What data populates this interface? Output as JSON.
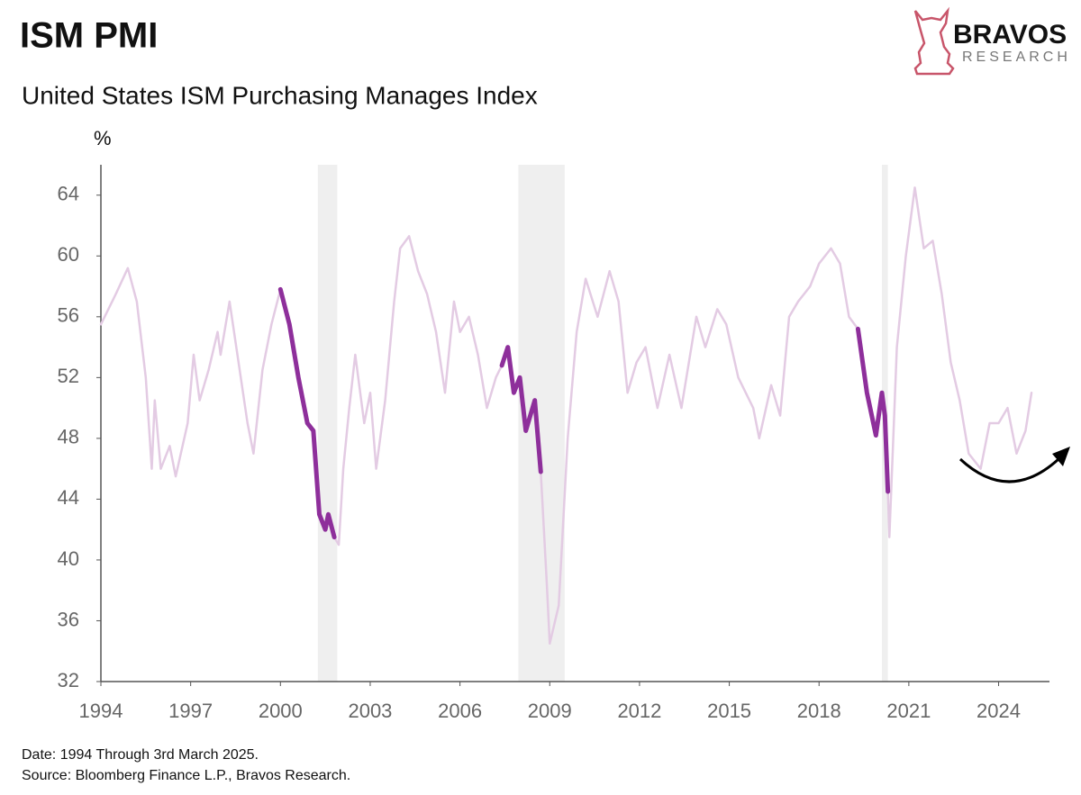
{
  "chart_data": {
    "type": "line",
    "title": "ISM PMI",
    "subtitle": "United States ISM Purchasing Manages Index",
    "y_unit": "%",
    "brand": "BRAVOS",
    "brand_sub": "RESEARCH",
    "notes": [
      "Date: 1994 Through 3rd March 2025.",
      "Source: Bloomberg Finance L.P., Bravos Research."
    ],
    "x": [
      1994.0,
      1994.5,
      1994.9,
      1995.2,
      1995.5,
      1995.7,
      1995.8,
      1996.0,
      1996.3,
      1996.5,
      1996.9,
      1997.1,
      1997.3,
      1997.6,
      1997.9,
      1998.0,
      1998.3,
      1998.6,
      1998.9,
      1999.1,
      1999.4,
      1999.7,
      2000.0,
      2000.3,
      2000.6,
      2000.9,
      2001.1,
      2001.3,
      2001.5,
      2001.6,
      2001.8,
      2001.95,
      2002.1,
      2002.3,
      2002.5,
      2002.8,
      2003.0,
      2003.2,
      2003.5,
      2003.8,
      2004.0,
      2004.3,
      2004.6,
      2004.9,
      2005.2,
      2005.5,
      2005.8,
      2006.0,
      2006.3,
      2006.6,
      2006.9,
      2007.2,
      2007.4,
      2007.6,
      2007.8,
      2008.0,
      2008.2,
      2008.5,
      2008.7,
      2008.9,
      2009.0,
      2009.3,
      2009.6,
      2009.9,
      2010.2,
      2010.6,
      2011.0,
      2011.3,
      2011.6,
      2011.9,
      2012.2,
      2012.6,
      2013.0,
      2013.4,
      2013.9,
      2014.2,
      2014.6,
      2014.9,
      2015.3,
      2015.8,
      2016.0,
      2016.4,
      2016.7,
      2017.0,
      2017.3,
      2017.7,
      2018.0,
      2018.4,
      2018.7,
      2019.0,
      2019.3,
      2019.6,
      2019.9,
      2020.1,
      2020.2,
      2020.3,
      2020.35,
      2020.6,
      2020.9,
      2021.2,
      2021.5,
      2021.8,
      2022.1,
      2022.4,
      2022.7,
      2023.0,
      2023.4,
      2023.7,
      2024.0,
      2024.3,
      2024.6,
      2024.9,
      2025.1
    ],
    "series": [
      {
        "color": "#e3cbe3",
        "width": 2.5,
        "values": [
          55.5,
          57.5,
          59.2,
          57,
          52,
          46,
          50.5,
          46,
          47.5,
          45.5,
          49,
          53.5,
          50.5,
          52.5,
          55,
          53.5,
          57,
          53,
          49,
          47,
          52.5,
          55.5,
          57.8,
          55.5,
          52,
          49,
          48.5,
          43,
          42,
          43,
          41.5,
          41,
          46,
          50,
          53.5,
          49,
          51,
          46,
          50.5,
          57,
          60.5,
          61.3,
          59,
          57.5,
          55,
          51,
          57,
          55,
          56,
          53.5,
          50,
          52,
          52.8,
          54,
          51,
          52,
          48.5,
          50.5,
          45.8,
          38.5,
          34.5,
          37,
          48,
          55,
          58.5,
          56,
          59,
          57,
          51,
          53,
          54,
          50,
          53.5,
          50,
          56,
          54,
          56.5,
          55.5,
          52,
          50,
          48,
          51.5,
          49.5,
          56,
          57,
          58,
          59.5,
          60.5,
          59.5,
          56,
          55.2,
          51,
          48.2,
          51,
          49.5,
          44.5,
          41.5,
          54,
          60,
          64.5,
          60.5,
          61,
          57.5,
          53,
          50.5,
          47,
          46,
          49,
          49,
          50,
          47,
          48.5,
          51
        ]
      },
      {
        "color": "#8e2f9b",
        "width": 5,
        "values": [
          null,
          null,
          null,
          null,
          null,
          null,
          null,
          null,
          null,
          null,
          null,
          null,
          null,
          null,
          null,
          null,
          null,
          null,
          null,
          null,
          null,
          null,
          57.8,
          55.5,
          52,
          49,
          48.5,
          43,
          42,
          43,
          41.5,
          null,
          null,
          null,
          null,
          null,
          null,
          null,
          null,
          null,
          null,
          null,
          null,
          null,
          null,
          null,
          null,
          null,
          null,
          null,
          null,
          null,
          52.8,
          54,
          51,
          52,
          48.5,
          50.5,
          45.8,
          null,
          null,
          null,
          null,
          null,
          null,
          null,
          null,
          null,
          null,
          null,
          null,
          null,
          null,
          null,
          null,
          null,
          null,
          null,
          null,
          null,
          null,
          null,
          null,
          null,
          null,
          null,
          null,
          null,
          null,
          null,
          55.2,
          51,
          48.2,
          51,
          49.5,
          44.5,
          null,
          null,
          null,
          null,
          null,
          null,
          null,
          null,
          null,
          null,
          null,
          null,
          null,
          null,
          null,
          null,
          null
        ]
      }
    ],
    "shaded": [
      [
        2001.25,
        2001.9
      ],
      [
        2007.95,
        2009.5
      ],
      [
        2020.1,
        2020.3
      ]
    ],
    "shade_color": "#efefef",
    "xlim": [
      1994,
      2025.7
    ],
    "ylim": [
      32,
      66
    ],
    "xticks": [
      1994,
      1997,
      2000,
      2003,
      2006,
      2009,
      2012,
      2015,
      2018,
      2021,
      2024
    ],
    "yticks": [
      32,
      36,
      40,
      44,
      48,
      52,
      56,
      60,
      64
    ]
  }
}
